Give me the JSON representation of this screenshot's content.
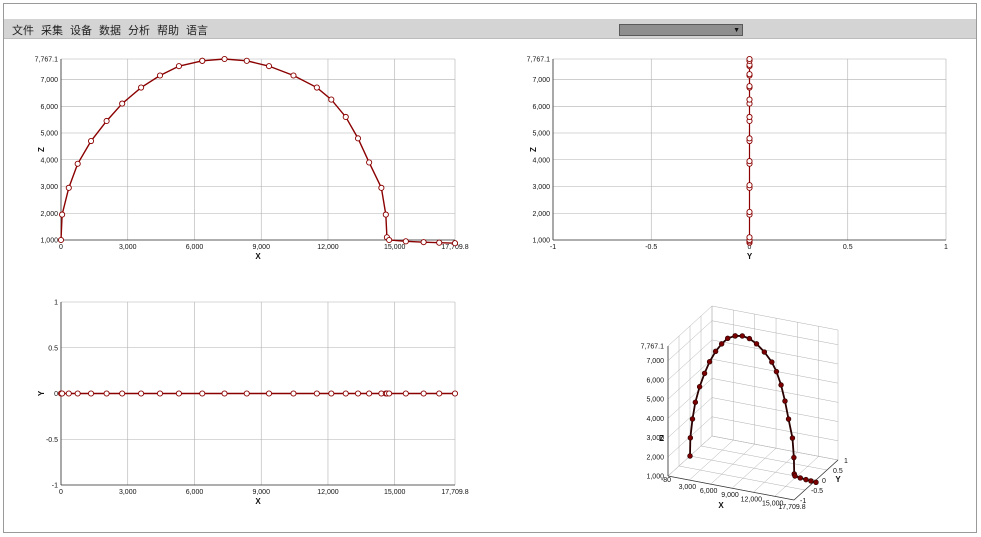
{
  "menu": {
    "items": [
      "文件",
      "采集",
      "设备",
      "数据",
      "分析",
      "帮助",
      "语言"
    ]
  },
  "dropdown": {
    "value": ""
  },
  "colors": {
    "curve": "#8b0000",
    "marker_fill": "#ffffff",
    "grid": "#b0b0b0",
    "axis": "#333333"
  },
  "chart_data": [
    {
      "type": "line",
      "id": "xz",
      "xlabel": "X",
      "ylabel": "Z",
      "xlim": [
        0,
        17709.8
      ],
      "ylim": [
        1000,
        7767.1
      ],
      "xticks": [
        0,
        3000,
        6000,
        9000,
        12000,
        15000,
        17709.8
      ],
      "xtick_labels": [
        "0",
        "3,000",
        "6,000",
        "9,000",
        "12,000",
        "15,000",
        "17,709.8"
      ],
      "yticks": [
        1000,
        2000,
        3000,
        4000,
        5000,
        6000,
        7000,
        7767.1
      ],
      "ytick_labels": [
        "1,000",
        "2,000",
        "3,000",
        "4,000",
        "5,000",
        "6,000",
        "7,000",
        "7,767.1"
      ],
      "grid": true,
      "x": [
        0,
        50,
        350,
        750,
        1350,
        2050,
        2750,
        3600,
        4450,
        5300,
        6350,
        6350,
        7350,
        8350,
        9350,
        10450,
        11500,
        12150,
        12800,
        13350,
        13850,
        14400,
        14600,
        14650,
        14750,
        15500,
        16300,
        17000,
        17709.8
      ],
      "y": [
        1000,
        1950,
        2950,
        3850,
        4700,
        5450,
        6100,
        6700,
        7150,
        7500,
        7700,
        7700,
        7767.1,
        7700,
        7500,
        7150,
        6700,
        6250,
        5600,
        4800,
        3900,
        2950,
        1950,
        1100,
        1000,
        950,
        920,
        900,
        880
      ]
    },
    {
      "type": "scatter",
      "id": "yz",
      "xlabel": "Y",
      "ylabel": "Z",
      "xlim": [
        -1,
        1
      ],
      "ylim": [
        1000,
        7767.1
      ],
      "xticks": [
        -1,
        -0.5,
        0,
        0.5,
        1
      ],
      "xtick_labels": [
        "-1",
        "-0.5",
        "0",
        "0.5",
        "1"
      ],
      "yticks": [
        1000,
        2000,
        3000,
        4000,
        5000,
        6000,
        7000,
        7767.1
      ],
      "ytick_labels": [
        "1,000",
        "2,000",
        "3,000",
        "4,000",
        "5,000",
        "6,000",
        "7,000",
        "7,767.1"
      ],
      "grid": true,
      "x": [
        0,
        0,
        0,
        0,
        0,
        0,
        0,
        0,
        0,
        0,
        0,
        0,
        0,
        0,
        0,
        0,
        0,
        0,
        0,
        0,
        0,
        0,
        0,
        0
      ],
      "y": [
        900,
        950,
        1000,
        1100,
        1950,
        2050,
        2950,
        3050,
        3850,
        3950,
        4700,
        4800,
        5450,
        5600,
        6100,
        6250,
        6700,
        6750,
        7150,
        7200,
        7500,
        7550,
        7700,
        7767.1
      ]
    },
    {
      "type": "line",
      "id": "xy",
      "xlabel": "X",
      "ylabel": "Y",
      "xlim": [
        0,
        17709.8
      ],
      "ylim": [
        -1,
        1
      ],
      "xticks": [
        0,
        3000,
        6000,
        9000,
        12000,
        15000,
        17709.8
      ],
      "xtick_labels": [
        "0",
        "3,000",
        "6,000",
        "9,000",
        "12,000",
        "15,000",
        "17,709.8"
      ],
      "yticks": [
        -1,
        -0.5,
        0,
        0.5,
        1
      ],
      "ytick_labels": [
        "-1",
        "-0.5",
        "0",
        "0.5",
        "1"
      ],
      "grid": true,
      "x": [
        0,
        50,
        350,
        750,
        1350,
        2050,
        2750,
        3600,
        4450,
        5300,
        6350,
        7350,
        8350,
        9350,
        10450,
        11500,
        12150,
        12800,
        13350,
        13850,
        14400,
        14600,
        14650,
        14750,
        15500,
        16300,
        17000,
        17709.8
      ],
      "y": [
        0,
        0,
        0,
        0,
        0,
        0,
        0,
        0,
        0,
        0,
        0,
        0,
        0,
        0,
        0,
        0,
        0,
        0,
        0,
        0,
        0,
        0,
        0,
        0,
        0,
        0,
        0,
        0
      ]
    },
    {
      "type": "line",
      "id": "xyz3d",
      "xlabel": "X",
      "ylabel": "Y",
      "zlabel": "Z",
      "xlim": [
        0,
        17709.8
      ],
      "ylim": [
        -1,
        1
      ],
      "zlim": [
        1000,
        7767.1
      ],
      "xtick_labels": [
        "3,000",
        "6,000",
        "9,000",
        "12,000",
        "15,000",
        "17,709.8"
      ],
      "ytick_labels": [
        "-1",
        "-0.5",
        "0",
        "0.5",
        "1"
      ],
      "ztick_labels": [
        "1,000",
        "2,000",
        "3,000",
        "4,000",
        "5,000",
        "6,000",
        "7,000",
        "7,767.1"
      ],
      "x_first_label": "-80",
      "grid": true
    }
  ]
}
